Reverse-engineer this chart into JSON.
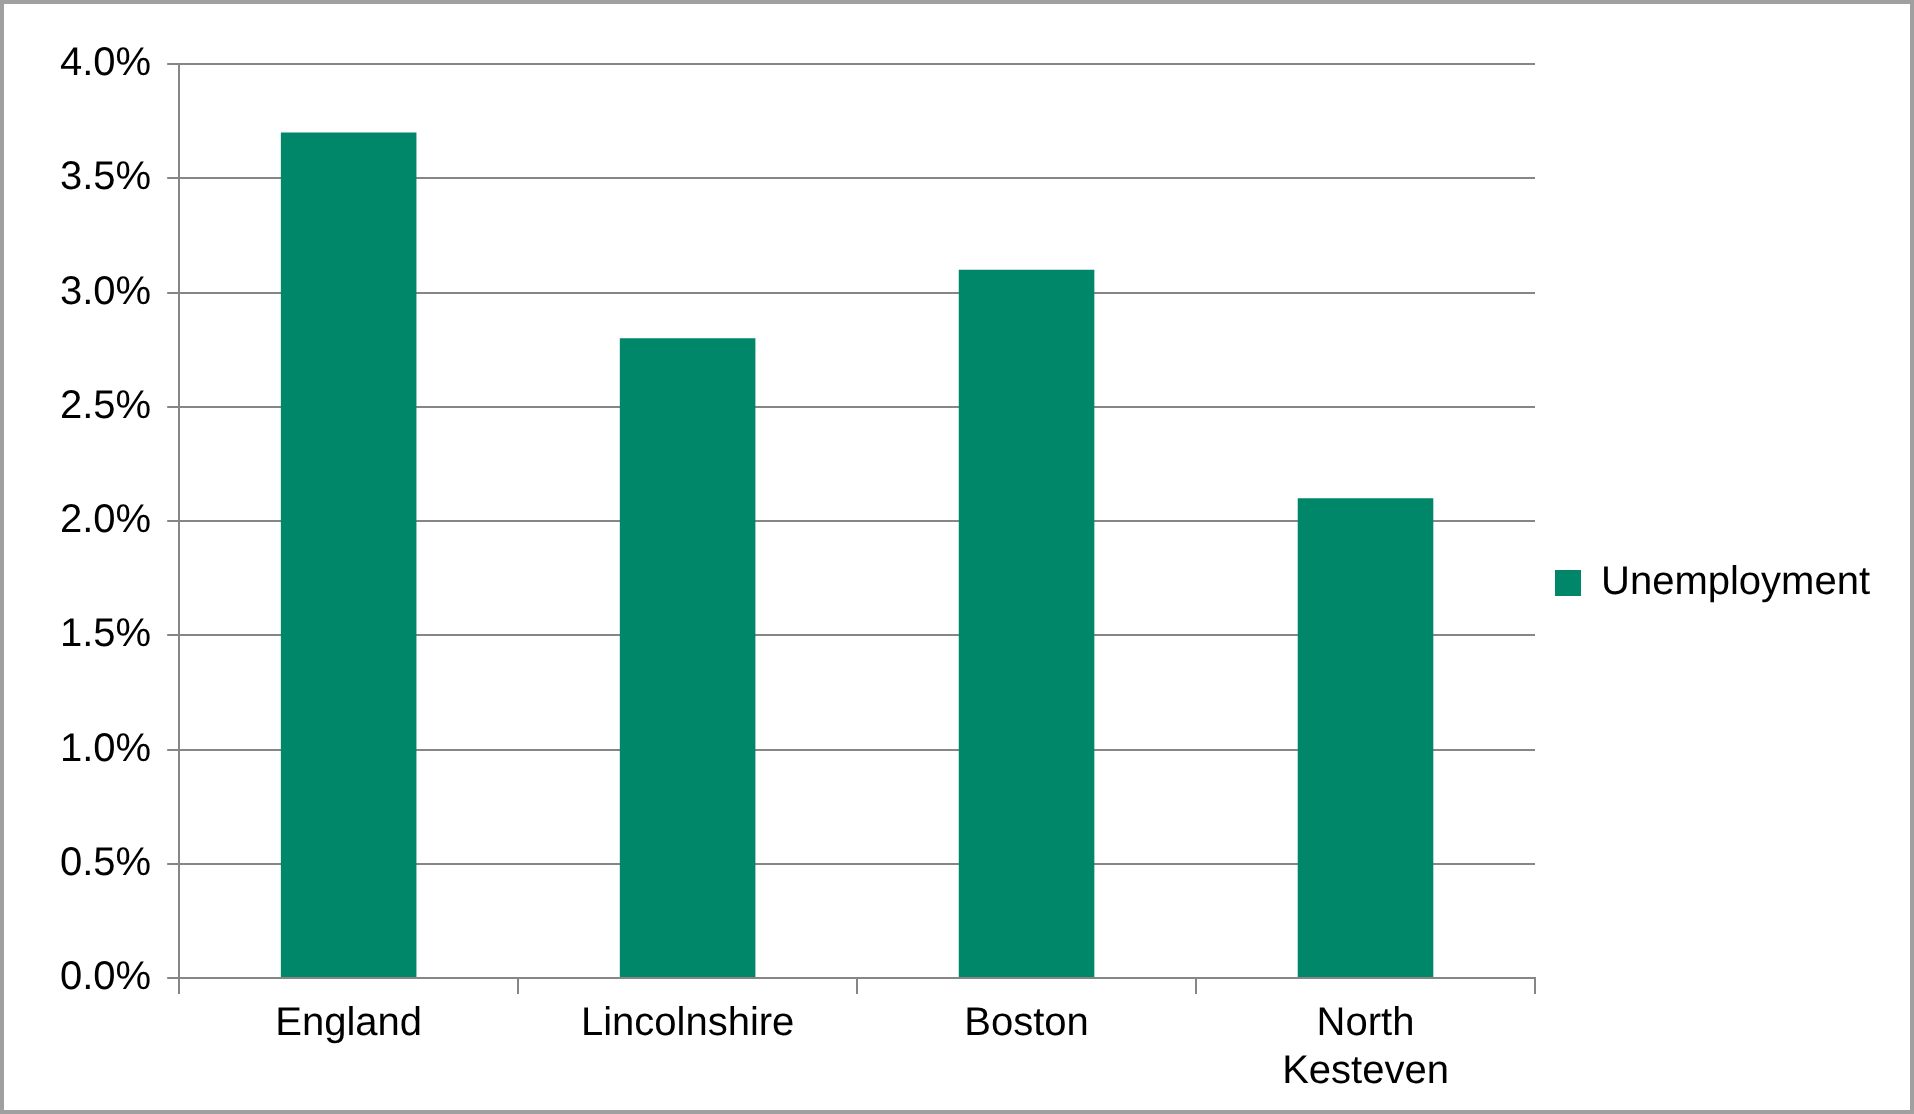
{
  "chart_data": {
    "type": "bar",
    "categories": [
      "England",
      "Lincolnshire",
      "Boston",
      "North Kesteven"
    ],
    "series": [
      {
        "name": "Unemployment",
        "color": "#00876a",
        "values": [
          3.7,
          2.8,
          3.1,
          2.1
        ]
      }
    ],
    "ylim": [
      0,
      4
    ],
    "yticks": [
      {
        "value": 0,
        "label": "0.0%"
      },
      {
        "value": 0.5,
        "label": "0.5%"
      },
      {
        "value": 1,
        "label": "1.0%"
      },
      {
        "value": 1.5,
        "label": "1.5%"
      },
      {
        "value": 2,
        "label": "2.0%"
      },
      {
        "value": 2.5,
        "label": "2.5%"
      },
      {
        "value": 3,
        "label": "3.0%"
      },
      {
        "value": 3.5,
        "label": "3.5%"
      },
      {
        "value": 4,
        "label": "4.0%"
      }
    ],
    "grid": "y",
    "legend": "right"
  }
}
